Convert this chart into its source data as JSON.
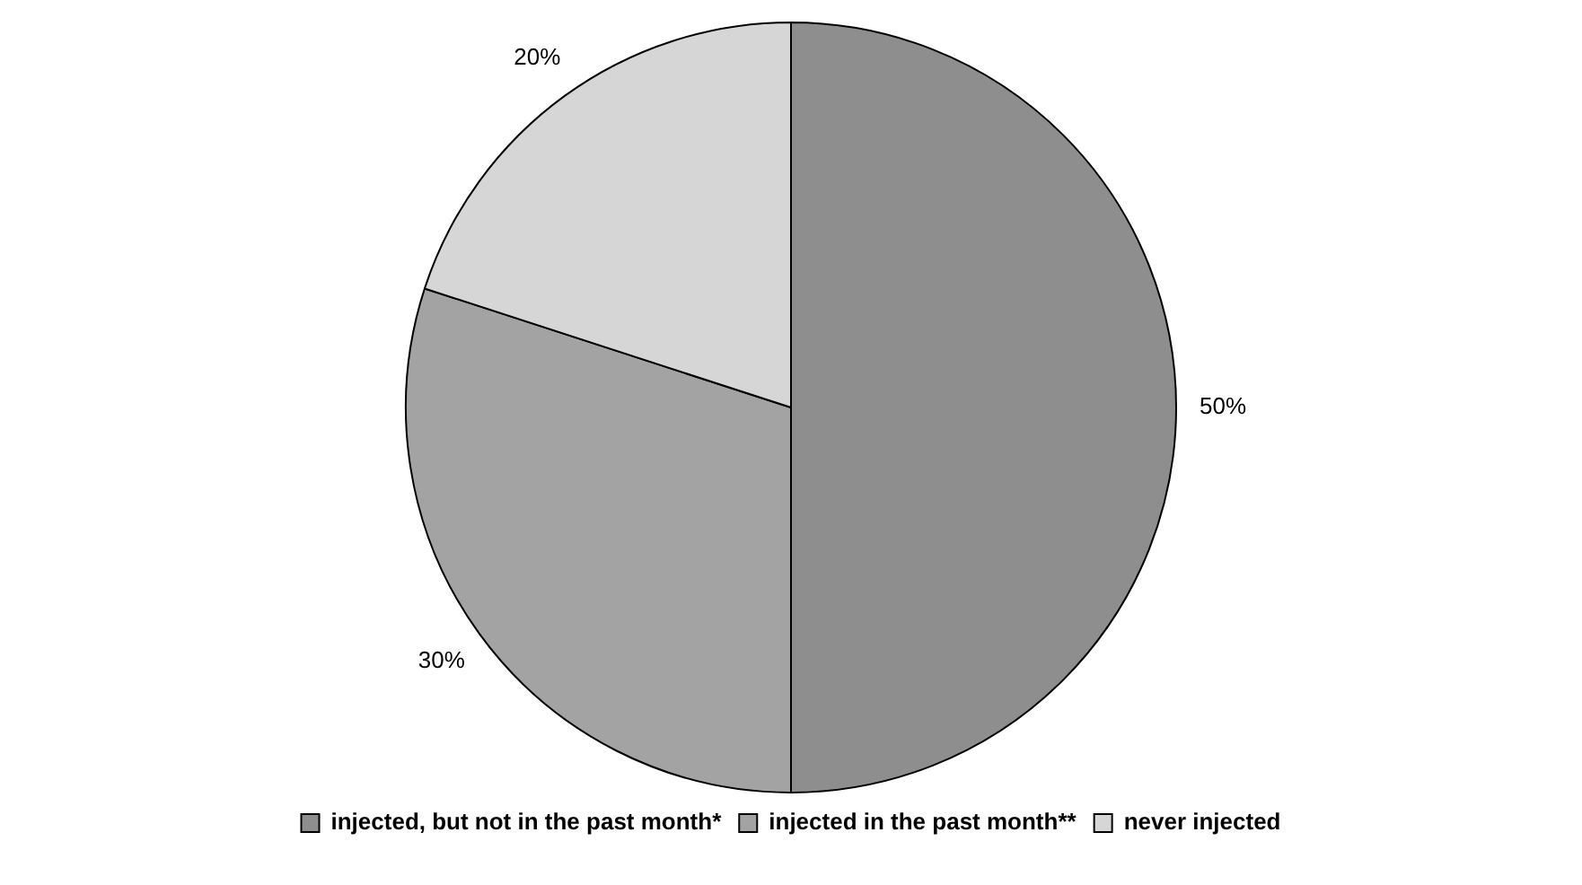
{
  "chart_data": {
    "type": "pie",
    "categories": [
      "injected, but not in the past month*",
      "injected in the past month**",
      "never injected"
    ],
    "values": [
      50,
      30,
      20
    ],
    "colors": [
      "#8e8e8e",
      "#a3a3a3",
      "#d6d6d6"
    ],
    "value_labels": [
      "50%",
      "30%",
      "20%"
    ],
    "legend": "bottom"
  }
}
